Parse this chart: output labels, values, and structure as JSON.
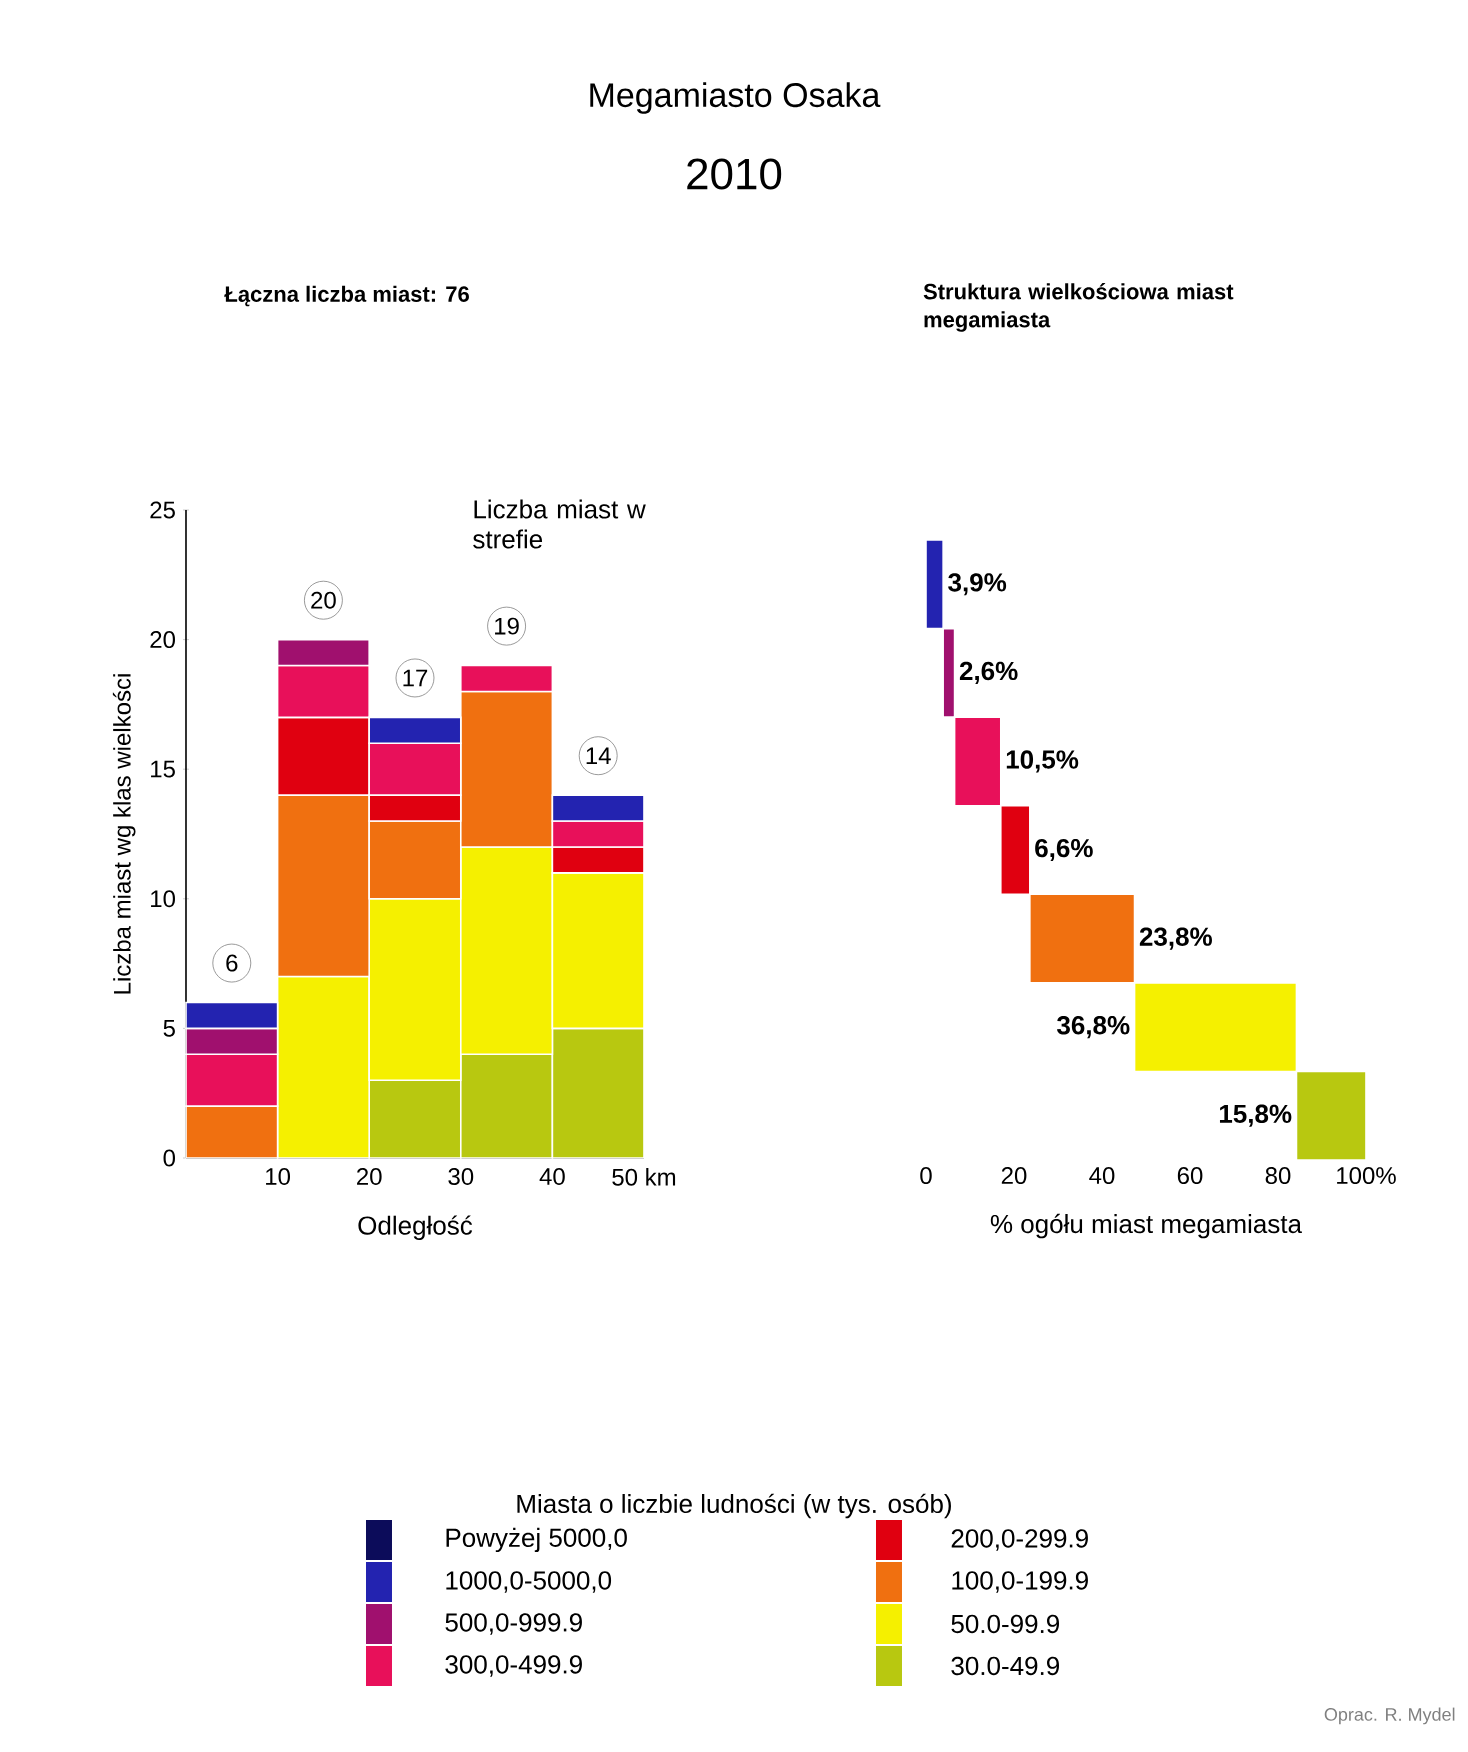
{
  "chart_data": [
    {
      "type": "bar",
      "title": "Megamiasto Osaka",
      "subtitle": "2010",
      "xlabel": "Odległość",
      "ylabel": "Liczba miast wg klas wielkości",
      "legend_title": "Miasta o liczbie ludności (w tys. osób)",
      "annotations": [
        "Łączna liczba miast: 76",
        "Liczba miast w strefie",
        "Oprac. R. Mydel"
      ],
      "x": [
        5,
        15,
        25,
        35,
        45
      ],
      "xlim": [
        0,
        50
      ],
      "xticks": [
        10,
        20,
        30,
        40,
        {
          "value": 50,
          "label": "50 km"
        }
      ],
      "ylim": [
        0,
        25
      ],
      "yticks": [
        0,
        5,
        10,
        15,
        20,
        25
      ],
      "stacked": true,
      "totals": [
        "6",
        "20",
        "17",
        "19",
        "14"
      ],
      "legend": "bottom",
      "series": [
        {
          "name": "30.0-49.9",
          "color": "#b8c810",
          "values": [
            null,
            null,
            3,
            4,
            5
          ]
        },
        {
          "name": "50.0-99.9",
          "color": "#f5f000",
          "values": [
            null,
            7,
            7,
            8,
            6
          ]
        },
        {
          "name": "100,0-199.9",
          "color": "#f07010",
          "values": [
            2,
            7,
            3,
            6,
            null
          ]
        },
        {
          "name": "200,0-299.9",
          "color": "#e00010",
          "values": [
            null,
            3,
            1,
            null,
            1
          ]
        },
        {
          "name": "300,0-499.9",
          "color": "#e8105a",
          "values": [
            2,
            2,
            2,
            1,
            1
          ]
        },
        {
          "name": "500,0-999.9",
          "color": "#a0106e",
          "values": [
            1,
            1,
            null,
            null,
            null
          ]
        },
        {
          "name": "1000,0-5000,0",
          "color": "#2323b0",
          "values": [
            1,
            null,
            1,
            null,
            1
          ]
        },
        {
          "name": "Powyżej 5000,0",
          "color": "#0c0c5a",
          "values": [
            null,
            null,
            null,
            null,
            null
          ]
        }
      ]
    },
    {
      "type": "bar",
      "orientation": "horizontal",
      "title": "Struktura wielkościowa miast megamiasta",
      "xlabel": "% ogółu miast megamiasta",
      "categories": [
        null,
        null,
        null,
        null,
        null,
        null,
        null
      ],
      "values": [
        3.9,
        2.6,
        10.5,
        6.6,
        23.8,
        36.8,
        15.8
      ],
      "base": [
        0,
        3.9,
        6.5,
        17.0,
        23.6,
        47.4,
        84.2
      ],
      "colors": [
        "#2323b0",
        "#a0106e",
        "#e8105a",
        "#e00010",
        "#f07010",
        "#f5f000",
        "#b8c810"
      ],
      "value_labels": [
        "3,9%",
        "2,6%",
        "10,5%",
        "6,6%",
        "23,8%",
        "36,8%",
        "15,8%"
      ],
      "xlim": [
        0,
        100
      ],
      "xticks": [
        0,
        20,
        40,
        60,
        80,
        {
          "value": 100,
          "label": "100%"
        }
      ]
    }
  ]
}
